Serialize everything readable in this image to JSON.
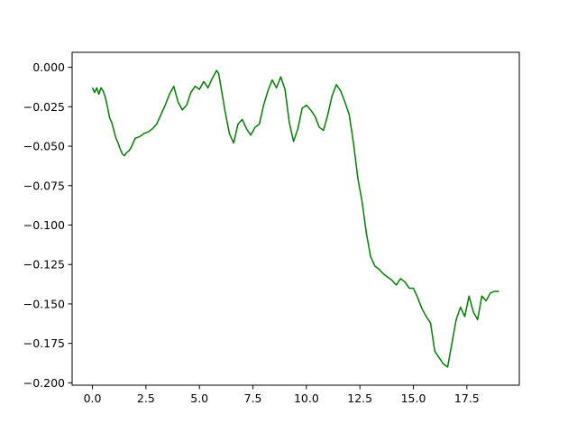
{
  "chart_data": {
    "type": "line",
    "title": "",
    "xlabel": "",
    "ylabel": "",
    "xlim": [
      -0.95,
      19.95
    ],
    "ylim": [
      -0.2015,
      0.0095
    ],
    "grid": false,
    "legend": "none",
    "x_ticks": [
      0.0,
      2.5,
      5.0,
      7.5,
      10.0,
      12.5,
      15.0,
      17.5
    ],
    "x_tick_labels": [
      "0.0",
      "2.5",
      "5.0",
      "7.5",
      "10.0",
      "12.5",
      "15.0",
      "17.5"
    ],
    "y_ticks": [
      0.0,
      -0.025,
      -0.05,
      -0.075,
      -0.1,
      -0.125,
      -0.15,
      -0.175,
      -0.2
    ],
    "y_tick_labels": [
      "0.000",
      "−0.025",
      "−0.050",
      "−0.075",
      "−0.100",
      "−0.125",
      "−0.150",
      "−0.175",
      "−0.200"
    ],
    "series": [
      {
        "color": "#008000",
        "x": [
          0.0,
          0.1,
          0.2,
          0.3,
          0.4,
          0.5,
          0.6,
          0.7,
          0.8,
          0.9,
          1.0,
          1.1,
          1.2,
          1.3,
          1.4,
          1.5,
          1.6,
          1.7,
          1.8,
          1.9,
          2.0,
          2.2,
          2.4,
          2.6,
          2.8,
          3.0,
          3.2,
          3.4,
          3.6,
          3.8,
          4.0,
          4.2,
          4.4,
          4.6,
          4.8,
          5.0,
          5.2,
          5.4,
          5.6,
          5.8,
          5.9,
          6.0,
          6.2,
          6.4,
          6.6,
          6.8,
          7.0,
          7.2,
          7.4,
          7.6,
          7.8,
          8.0,
          8.2,
          8.4,
          8.6,
          8.8,
          9.0,
          9.2,
          9.4,
          9.6,
          9.8,
          10.0,
          10.2,
          10.4,
          10.6,
          10.8,
          11.0,
          11.2,
          11.4,
          11.6,
          11.8,
          12.0,
          12.2,
          12.4,
          12.6,
          12.8,
          13.0,
          13.2,
          13.4,
          13.6,
          13.8,
          14.0,
          14.2,
          14.4,
          14.6,
          14.8,
          15.0,
          15.2,
          15.4,
          15.6,
          15.8,
          16.0,
          16.2,
          16.4,
          16.6,
          16.8,
          17.0,
          17.2,
          17.4,
          17.6,
          17.8,
          18.0,
          18.2,
          18.4,
          18.6,
          18.8,
          19.0
        ],
        "y": [
          -0.013,
          -0.016,
          -0.013,
          -0.017,
          -0.013,
          -0.015,
          -0.019,
          -0.025,
          -0.032,
          -0.035,
          -0.04,
          -0.045,
          -0.048,
          -0.052,
          -0.055,
          -0.056,
          -0.054,
          -0.053,
          -0.051,
          -0.048,
          -0.045,
          -0.044,
          -0.042,
          -0.041,
          -0.039,
          -0.036,
          -0.03,
          -0.024,
          -0.017,
          -0.012,
          -0.022,
          -0.027,
          -0.024,
          -0.016,
          -0.012,
          -0.014,
          -0.009,
          -0.013,
          -0.007,
          -0.002,
          -0.004,
          -0.012,
          -0.028,
          -0.042,
          -0.048,
          -0.036,
          -0.033,
          -0.039,
          -0.043,
          -0.038,
          -0.036,
          -0.024,
          -0.015,
          -0.008,
          -0.013,
          -0.006,
          -0.014,
          -0.035,
          -0.047,
          -0.039,
          -0.026,
          -0.024,
          -0.027,
          -0.031,
          -0.038,
          -0.04,
          -0.03,
          -0.018,
          -0.011,
          -0.015,
          -0.022,
          -0.03,
          -0.048,
          -0.07,
          -0.085,
          -0.105,
          -0.12,
          -0.126,
          -0.128,
          -0.131,
          -0.133,
          -0.135,
          -0.138,
          -0.134,
          -0.136,
          -0.14,
          -0.14,
          -0.146,
          -0.153,
          -0.158,
          -0.162,
          -0.18,
          -0.184,
          -0.188,
          -0.19,
          -0.175,
          -0.16,
          -0.152,
          -0.158,
          -0.145,
          -0.155,
          -0.16,
          -0.145,
          -0.148,
          -0.143,
          -0.142,
          -0.142
        ]
      }
    ]
  }
}
